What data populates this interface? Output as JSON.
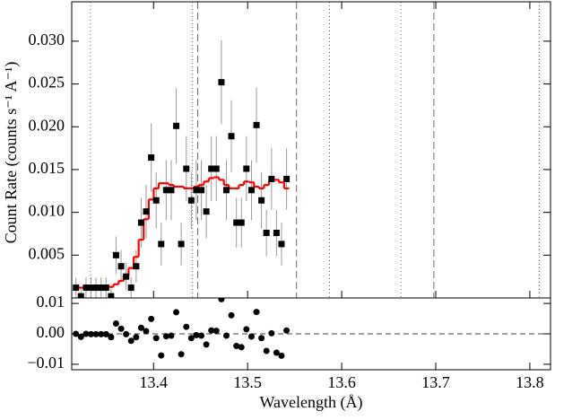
{
  "chart_data": [
    {
      "type": "scatter",
      "ylabel": "Count Rate (counts s⁻¹ A⁻¹)",
      "xlim": [
        13.313,
        13.822
      ],
      "ylim": [
        0,
        0.0346
      ],
      "yticks": [
        {
          "value": 0.005,
          "label": "0.005"
        },
        {
          "value": 0.01,
          "label": "0.010"
        },
        {
          "value": 0.015,
          "label": "0.015"
        },
        {
          "value": 0.02,
          "label": "0.020"
        },
        {
          "value": 0.025,
          "label": "0.025"
        },
        {
          "value": 0.03,
          "label": "0.030"
        }
      ],
      "xticks": [
        13.4,
        13.5,
        13.6,
        13.7,
        13.8
      ],
      "x": [
        13.3175,
        13.3228,
        13.3282,
        13.3335,
        13.3388,
        13.3442,
        13.3495,
        13.3548,
        13.3601,
        13.3655,
        13.3708,
        13.3761,
        13.3815,
        13.3868,
        13.3921,
        13.3975,
        13.4028,
        13.4081,
        13.4134,
        13.4188,
        13.4241,
        13.4294,
        13.4348,
        13.4401,
        13.4454,
        13.4508,
        13.4561,
        13.4614,
        13.4667,
        13.4721,
        13.4774,
        13.4827,
        13.4881,
        13.4934,
        13.4987,
        13.5041,
        13.5094,
        13.5147,
        13.52,
        13.5254,
        13.5307,
        13.536,
        13.5414
      ],
      "values": [
        0.0012,
        0.0002,
        0.0012,
        0.0012,
        0.0012,
        0.0012,
        0.0012,
        0.0002,
        0.005,
        0.0037,
        0.0025,
        0.0012,
        0.0037,
        0.0088,
        0.0101,
        0.0164,
        0.0114,
        0.0063,
        0.0126,
        0.0126,
        0.0201,
        0.0063,
        0.0151,
        0.0114,
        0.0126,
        0.0126,
        0.0101,
        0.0151,
        0.0151,
        0.0252,
        0.0126,
        0.0189,
        0.0088,
        0.0088,
        0.0151,
        0.0126,
        0.0202,
        0.0114,
        0.0076,
        0.0139,
        0.0076,
        0.0063,
        0.0139
      ],
      "errors": [
        0.0012,
        0.001,
        0.0012,
        0.0012,
        0.0012,
        0.0012,
        0.0012,
        0.001,
        0.0022,
        0.0019,
        0.0016,
        0.0012,
        0.0019,
        0.0029,
        0.0031,
        0.004,
        0.0033,
        0.0025,
        0.0035,
        0.0035,
        0.0044,
        0.0025,
        0.0038,
        0.0033,
        0.0035,
        0.0035,
        0.0031,
        0.0038,
        0.0038,
        0.0049,
        0.0035,
        0.0042,
        0.0029,
        0.0029,
        0.0038,
        0.0035,
        0.0044,
        0.0033,
        0.0027,
        0.0036,
        0.0027,
        0.0025,
        0.0036
      ],
      "color": "#000000",
      "error_color": "#999999",
      "model_values": [
        0.0012,
        0.0012,
        0.0012,
        0.0013,
        0.0013,
        0.0013,
        0.0013,
        0.0013,
        0.0016,
        0.002,
        0.0026,
        0.0035,
        0.0048,
        0.0068,
        0.0092,
        0.0115,
        0.0128,
        0.0134,
        0.0134,
        0.0132,
        0.013,
        0.013,
        0.0128,
        0.0128,
        0.013,
        0.0132,
        0.0136,
        0.014,
        0.0141,
        0.0138,
        0.0132,
        0.0128,
        0.0128,
        0.0132,
        0.0136,
        0.0135,
        0.013,
        0.0128,
        0.0132,
        0.0137,
        0.0138,
        0.0135,
        0.0128
      ],
      "model_color": "#ff0000",
      "line_markers": [
        {
          "x": 13.333,
          "style": "dotted"
        },
        {
          "x": 13.441,
          "style": "dotted"
        },
        {
          "x": 13.447,
          "style": "dashed"
        },
        {
          "x": 13.552,
          "style": "dashed"
        },
        {
          "x": 13.587,
          "style": "dotted"
        },
        {
          "x": 13.663,
          "style": "dotted"
        },
        {
          "x": 13.698,
          "style": "dashed"
        },
        {
          "x": 13.81,
          "style": "dotted"
        }
      ]
    },
    {
      "type": "residual",
      "xlabel": "Wavelength (Å)",
      "xlim": [
        13.313,
        13.822
      ],
      "ylim": [
        -0.0118,
        0.0118
      ],
      "yticks": [
        {
          "value": 0.01,
          "label": "0.01"
        },
        {
          "value": 0,
          "label": "0.00"
        },
        {
          "value": -0.01,
          "label": "−0.01"
        }
      ],
      "xticks": [
        13.4,
        13.5,
        13.6,
        13.7,
        13.8
      ],
      "values": [
        0,
        -0.001,
        0,
        -0.0001,
        -0.0001,
        -0.0001,
        -0.0001,
        -0.0011,
        0.0034,
        0.0017,
        -0.0001,
        -0.0023,
        -0.0011,
        0.002,
        0.0009,
        0.0049,
        -0.0014,
        -0.0071,
        -0.0008,
        -0.0006,
        0.0071,
        -0.0067,
        0.0023,
        -0.0014,
        -0.0004,
        -0.0006,
        -0.0035,
        0.0011,
        0.001,
        0.0114,
        -0.0006,
        0.0061,
        -0.004,
        -0.0044,
        0.0015,
        -0.0009,
        0.0072,
        -0.0014,
        -0.0056,
        0.0002,
        -0.0062,
        -0.0072,
        0.0011
      ],
      "color": "#000000"
    }
  ]
}
